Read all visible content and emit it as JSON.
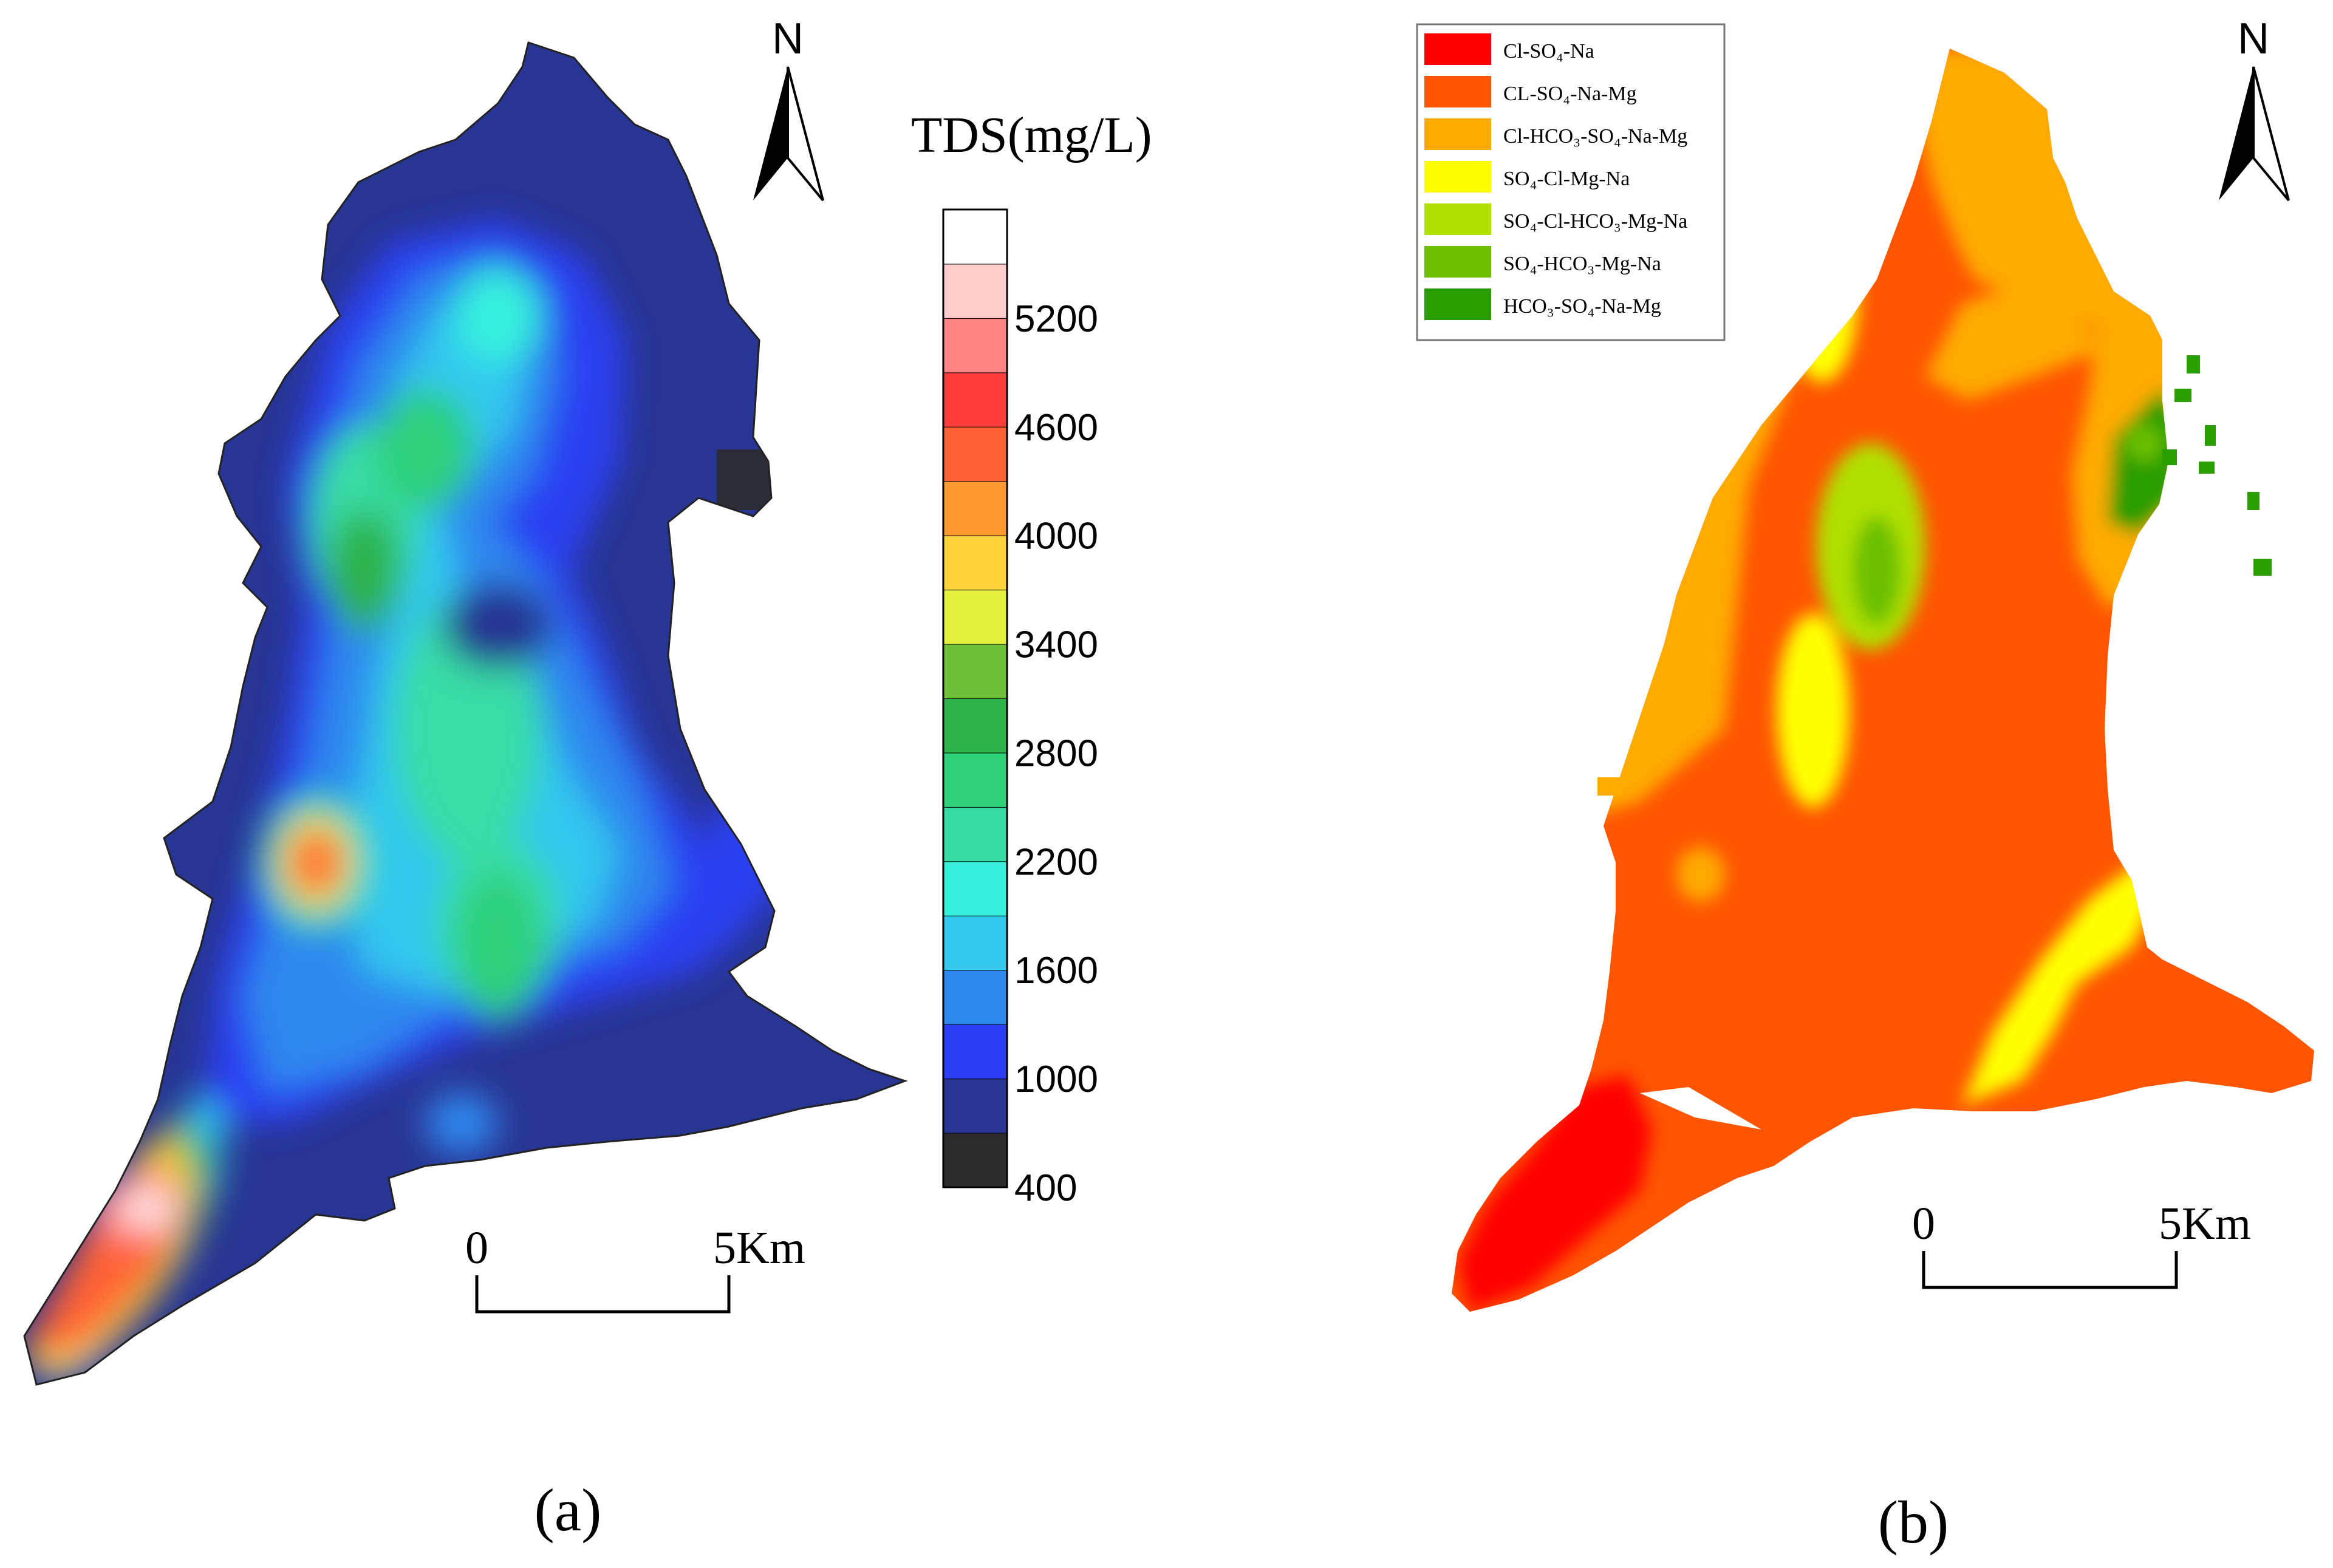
{
  "panels": {
    "a": {
      "label": "(a)",
      "legend_title": "TDS(mg/L)",
      "tick_labels": [
        "400",
        "1000",
        "1600",
        "2200",
        "2800",
        "3400",
        "4000",
        "4600",
        "5200"
      ],
      "ramp_colors": [
        "#2b2b2b",
        "#283593",
        "#2c3ff2",
        "#2f88ee",
        "#33c8ee",
        "#36f0dc",
        "#37dca5",
        "#2fd07a",
        "#2eb24c",
        "#6fc03a",
        "#e2f23c",
        "#ffd23a",
        "#ff9a32",
        "#ff6236",
        "#ff3c3c",
        "#ff8585",
        "#ffcbcb",
        "#ffffff"
      ],
      "scale_start": "0",
      "scale_end": "5Km",
      "north_label": "N"
    },
    "b": {
      "label": "(b)",
      "scale_start": "0",
      "scale_end": "5Km",
      "north_label": "N",
      "legend": [
        {
          "label": "Cl-SO₄-Na",
          "color": "#ff0000"
        },
        {
          "label": "CL-SO₄-Na-Mg",
          "color": "#ff5500"
        },
        {
          "label": "Cl-HCO₃-SO₄-Na-Mg",
          "color": "#ffaa00"
        },
        {
          "label": "SO₄-Cl-Mg-Na",
          "color": "#ffff00"
        },
        {
          "label": "SO₄-Cl-HCO₃-Mg-Na",
          "color": "#b0e000"
        },
        {
          "label": "SO₄-HCO₃-Mg-Na",
          "color": "#6cc000"
        },
        {
          "label": "HCO₃-SO₄-Na-Mg",
          "color": "#2a9e00"
        }
      ]
    }
  }
}
